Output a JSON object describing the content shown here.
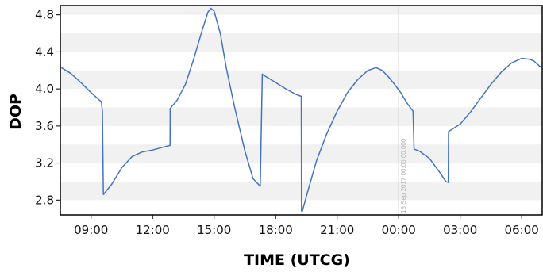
{
  "chart_data": {
    "type": "line",
    "title": "",
    "xlabel": "TIME (UTCG)",
    "ylabel": "DOP",
    "x_unit": "hours (UTCG, continuing past midnight as 24+)",
    "xlim": [
      7.5,
      31.0
    ],
    "ylim": [
      2.64,
      4.9
    ],
    "x_ticks": [
      {
        "value": 9,
        "label": "09:00"
      },
      {
        "value": 12,
        "label": "12:00"
      },
      {
        "value": 15,
        "label": "15:00"
      },
      {
        "value": 18,
        "label": "18:00"
      },
      {
        "value": 21,
        "label": "21:00"
      },
      {
        "value": 24,
        "label": "00:00"
      },
      {
        "value": 27,
        "label": "03:00"
      },
      {
        "value": 30,
        "label": "06:00"
      }
    ],
    "y_ticks": [
      {
        "value": 2.8,
        "label": "2.8"
      },
      {
        "value": 3.2,
        "label": "3.2"
      },
      {
        "value": 3.6,
        "label": "3.6"
      },
      {
        "value": 4.0,
        "label": "4.0"
      },
      {
        "value": 4.4,
        "label": "4.4"
      },
      {
        "value": 4.8,
        "label": "4.8"
      }
    ],
    "grid": "horizontal alternating bands",
    "legend": "none",
    "line_color": "#4472c4",
    "marker": {
      "x": 24.0,
      "label": "18 Sep 2017 00:00:00.000",
      "color": "#c0c0c0"
    },
    "series": [
      {
        "x": [
          7.55,
          8.0,
          8.5,
          9.0,
          9.5,
          9.55,
          9.6,
          10.0,
          10.5,
          11.0,
          11.5,
          12.0,
          12.5,
          12.85,
          12.86,
          13.2,
          13.6,
          14.0,
          14.4,
          14.7,
          14.85,
          15.0,
          15.3,
          15.6,
          16.0,
          16.5,
          16.9,
          17.25,
          17.35,
          17.4,
          18.0,
          18.5,
          19.0,
          19.25,
          19.26,
          19.3,
          19.6,
          20.0,
          20.5,
          21.0,
          21.5,
          22.0,
          22.5,
          22.9,
          23.2,
          23.5,
          23.8,
          24.1,
          24.4,
          24.7,
          24.75,
          25.0,
          25.5,
          26.0,
          26.3,
          26.42,
          26.43,
          27.0,
          27.5,
          28.0,
          28.5,
          29.0,
          29.5,
          30.0,
          30.4,
          30.6,
          30.9,
          31.0
        ],
        "y": [
          4.23,
          4.17,
          4.07,
          3.96,
          3.86,
          3.76,
          2.86,
          2.97,
          3.15,
          3.27,
          3.32,
          3.34,
          3.37,
          3.39,
          3.79,
          3.88,
          4.05,
          4.32,
          4.62,
          4.83,
          4.87,
          4.84,
          4.6,
          4.22,
          3.8,
          3.33,
          3.03,
          2.95,
          4.16,
          4.15,
          4.07,
          4.0,
          3.94,
          3.92,
          2.68,
          2.68,
          2.92,
          3.23,
          3.52,
          3.76,
          3.96,
          4.1,
          4.2,
          4.23,
          4.2,
          4.13,
          4.05,
          3.96,
          3.85,
          3.76,
          3.35,
          3.33,
          3.25,
          3.1,
          3.0,
          2.99,
          3.54,
          3.62,
          3.75,
          3.9,
          4.05,
          4.18,
          4.28,
          4.33,
          4.32,
          4.3,
          4.24,
          4.23
        ]
      }
    ]
  }
}
